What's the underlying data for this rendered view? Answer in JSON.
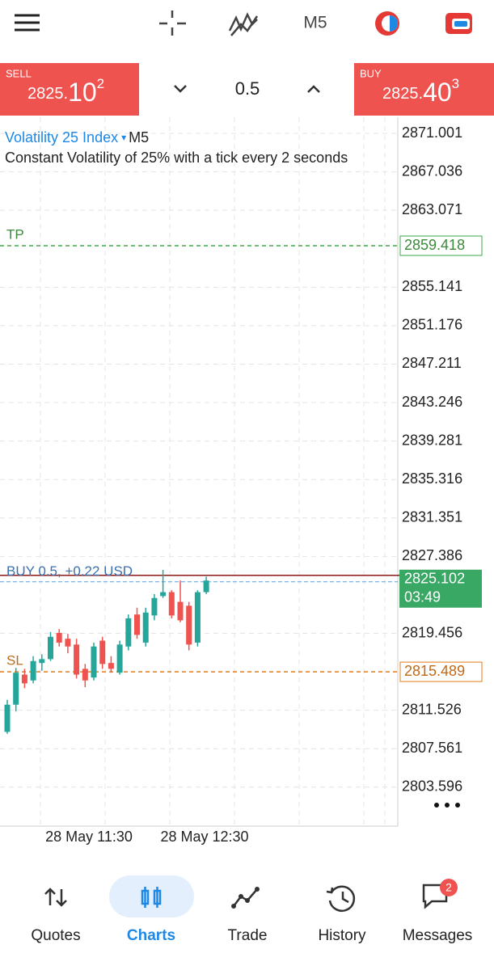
{
  "toolbar": {
    "timeframe": "M5"
  },
  "quote_bar": {
    "sell": {
      "label": "SELL",
      "price_main": "2825.",
      "price_big": "10",
      "price_sup": "2"
    },
    "volume": "0.5",
    "buy": {
      "label": "BUY",
      "price_main": "2825.",
      "price_big": "40",
      "price_sup": "3"
    }
  },
  "chart": {
    "symbol": "Volatility 25 Index",
    "timeframe": "M5",
    "description": "Constant Volatility of 25% with a tick every 2 seconds",
    "ylim": [
      2799.58,
      2872.67
    ],
    "yticks": [
      2871.001,
      2867.036,
      2863.071,
      2855.141,
      2851.176,
      2847.211,
      2843.246,
      2839.281,
      2835.316,
      2831.351,
      2827.386,
      2819.456,
      2811.526,
      2807.561,
      2803.596
    ],
    "x_labels": [
      "28 May 11:30",
      "28 May 12:30"
    ],
    "tp": {
      "label": "TP",
      "price": 2859.418
    },
    "sl": {
      "label": "SL",
      "price": 2815.489
    },
    "position": {
      "label": "BUY 0.5,  +0.22 USD"
    },
    "current_price": {
      "price": 2825.102,
      "countdown": "03:49"
    },
    "up_color": "#26a69a",
    "down_color": "#ef5350",
    "candles": [
      {
        "o": 2809.3,
        "h": 2812.6,
        "l": 2809.1,
        "c": 2812.1
      },
      {
        "o": 2812.1,
        "h": 2815.9,
        "l": 2811.4,
        "c": 2815.4
      },
      {
        "o": 2815.2,
        "h": 2815.8,
        "l": 2813.8,
        "c": 2814.3
      },
      {
        "o": 2814.6,
        "h": 2817.1,
        "l": 2814.3,
        "c": 2816.6
      },
      {
        "o": 2816.4,
        "h": 2817.3,
        "l": 2815.6,
        "c": 2816.8
      },
      {
        "o": 2816.8,
        "h": 2819.6,
        "l": 2816.6,
        "c": 2819.1
      },
      {
        "o": 2819.5,
        "h": 2819.9,
        "l": 2818.1,
        "c": 2818.5
      },
      {
        "o": 2818.9,
        "h": 2819.4,
        "l": 2817.4,
        "c": 2818.1
      },
      {
        "o": 2818.3,
        "h": 2818.9,
        "l": 2814.8,
        "c": 2815.2
      },
      {
        "o": 2815.8,
        "h": 2816.3,
        "l": 2813.9,
        "c": 2814.6
      },
      {
        "o": 2814.9,
        "h": 2818.5,
        "l": 2814.6,
        "c": 2818.1
      },
      {
        "o": 2818.7,
        "h": 2819.1,
        "l": 2815.8,
        "c": 2816.3
      },
      {
        "o": 2816.4,
        "h": 2817.1,
        "l": 2815.4,
        "c": 2815.8
      },
      {
        "o": 2815.4,
        "h": 2818.7,
        "l": 2815.2,
        "c": 2818.3
      },
      {
        "o": 2818.1,
        "h": 2821.4,
        "l": 2817.7,
        "c": 2821.0
      },
      {
        "o": 2821.4,
        "h": 2822.1,
        "l": 2818.9,
        "c": 2819.3
      },
      {
        "o": 2818.5,
        "h": 2822.1,
        "l": 2818.1,
        "c": 2821.6
      },
      {
        "o": 2821.3,
        "h": 2823.5,
        "l": 2820.8,
        "c": 2823.1
      },
      {
        "o": 2823.3,
        "h": 2826.0,
        "l": 2823.1,
        "c": 2823.7
      },
      {
        "o": 2823.7,
        "h": 2823.9,
        "l": 2821.0,
        "c": 2821.3
      },
      {
        "o": 2822.7,
        "h": 2824.9,
        "l": 2820.6,
        "c": 2820.8
      },
      {
        "o": 2822.3,
        "h": 2822.7,
        "l": 2817.7,
        "c": 2818.3
      },
      {
        "o": 2818.5,
        "h": 2823.9,
        "l": 2818.1,
        "c": 2823.7
      },
      {
        "o": 2823.7,
        "h": 2825.3,
        "l": 2823.5,
        "c": 2824.9
      }
    ]
  },
  "nav": {
    "items": [
      "Quotes",
      "Charts",
      "Trade",
      "History",
      "Messages"
    ],
    "badge": 2
  }
}
